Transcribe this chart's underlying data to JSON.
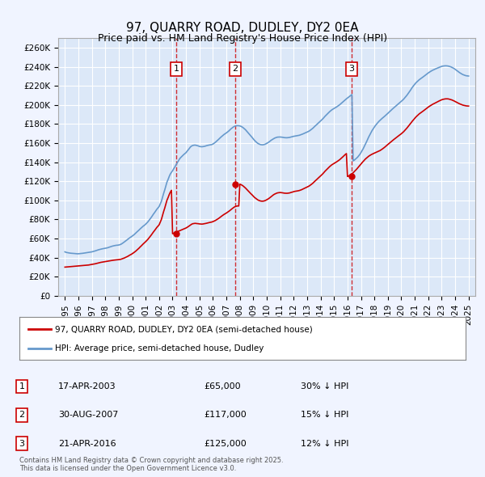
{
  "title": "97, QUARRY ROAD, DUDLEY, DY2 0EA",
  "subtitle": "Price paid vs. HM Land Registry's House Price Index (HPI)",
  "ylabel": "",
  "ylim": [
    0,
    270000
  ],
  "yticks": [
    0,
    20000,
    40000,
    60000,
    80000,
    100000,
    120000,
    140000,
    160000,
    180000,
    200000,
    220000,
    240000,
    260000
  ],
  "ytick_labels": [
    "£0",
    "£20K",
    "£40K",
    "£60K",
    "£80K",
    "£100K",
    "£120K",
    "£140K",
    "£160K",
    "£180K",
    "£200K",
    "£220K",
    "£240K",
    "£260K"
  ],
  "background_color": "#f0f4ff",
  "plot_bg": "#dce8f8",
  "grid_color": "#ffffff",
  "red_line_color": "#cc0000",
  "blue_line_color": "#6699cc",
  "sale_dates": [
    "17-APR-2003",
    "30-AUG-2007",
    "21-APR-2016"
  ],
  "sale_years": [
    2003.29,
    2007.66,
    2016.3
  ],
  "sale_prices": [
    65000,
    117000,
    125000
  ],
  "sale_labels": [
    "1",
    "2",
    "3"
  ],
  "sale_vs_hpi": [
    "30% ↓ HPI",
    "15% ↓ HPI",
    "12% ↓ HPI"
  ],
  "legend_red": "97, QUARRY ROAD, DUDLEY, DY2 0EA (semi-detached house)",
  "legend_blue": "HPI: Average price, semi-detached house, Dudley",
  "footer": "Contains HM Land Registry data © Crown copyright and database right 2025.\nThis data is licensed under the Open Government Licence v3.0.",
  "hpi_data": {
    "years": [
      1995.0,
      1995.08,
      1995.17,
      1995.25,
      1995.33,
      1995.42,
      1995.5,
      1995.58,
      1995.67,
      1995.75,
      1995.83,
      1995.92,
      1996.0,
      1996.08,
      1996.17,
      1996.25,
      1996.33,
      1996.42,
      1996.5,
      1996.58,
      1996.67,
      1996.75,
      1996.83,
      1996.92,
      1997.0,
      1997.08,
      1997.17,
      1997.25,
      1997.33,
      1997.42,
      1997.5,
      1997.58,
      1997.67,
      1997.75,
      1997.83,
      1997.92,
      1998.0,
      1998.08,
      1998.17,
      1998.25,
      1998.33,
      1998.42,
      1998.5,
      1998.58,
      1998.67,
      1998.75,
      1998.83,
      1998.92,
      1999.0,
      1999.08,
      1999.17,
      1999.25,
      1999.33,
      1999.42,
      1999.5,
      1999.58,
      1999.67,
      1999.75,
      1999.83,
      1999.92,
      2000.0,
      2000.08,
      2000.17,
      2000.25,
      2000.33,
      2000.42,
      2000.5,
      2000.58,
      2000.67,
      2000.75,
      2000.83,
      2000.92,
      2001.0,
      2001.08,
      2001.17,
      2001.25,
      2001.33,
      2001.42,
      2001.5,
      2001.58,
      2001.67,
      2001.75,
      2001.83,
      2001.92,
      2002.0,
      2002.08,
      2002.17,
      2002.25,
      2002.33,
      2002.42,
      2002.5,
      2002.58,
      2002.67,
      2002.75,
      2002.83,
      2002.92,
      2003.0,
      2003.08,
      2003.17,
      2003.25,
      2003.33,
      2003.42,
      2003.5,
      2003.58,
      2003.67,
      2003.75,
      2003.83,
      2003.92,
      2004.0,
      2004.08,
      2004.17,
      2004.25,
      2004.33,
      2004.42,
      2004.5,
      2004.58,
      2004.67,
      2004.75,
      2004.83,
      2004.92,
      2005.0,
      2005.08,
      2005.17,
      2005.25,
      2005.33,
      2005.42,
      2005.5,
      2005.58,
      2005.67,
      2005.75,
      2005.83,
      2005.92,
      2006.0,
      2006.08,
      2006.17,
      2006.25,
      2006.33,
      2006.42,
      2006.5,
      2006.58,
      2006.67,
      2006.75,
      2006.83,
      2006.92,
      2007.0,
      2007.08,
      2007.17,
      2007.25,
      2007.33,
      2007.42,
      2007.5,
      2007.58,
      2007.67,
      2007.75,
      2007.83,
      2007.92,
      2008.0,
      2008.08,
      2008.17,
      2008.25,
      2008.33,
      2008.42,
      2008.5,
      2008.58,
      2008.67,
      2008.75,
      2008.83,
      2008.92,
      2009.0,
      2009.08,
      2009.17,
      2009.25,
      2009.33,
      2009.42,
      2009.5,
      2009.58,
      2009.67,
      2009.75,
      2009.83,
      2009.92,
      2010.0,
      2010.08,
      2010.17,
      2010.25,
      2010.33,
      2010.42,
      2010.5,
      2010.58,
      2010.67,
      2010.75,
      2010.83,
      2010.92,
      2011.0,
      2011.08,
      2011.17,
      2011.25,
      2011.33,
      2011.42,
      2011.5,
      2011.58,
      2011.67,
      2011.75,
      2011.83,
      2011.92,
      2012.0,
      2012.08,
      2012.17,
      2012.25,
      2012.33,
      2012.42,
      2012.5,
      2012.58,
      2012.67,
      2012.75,
      2012.83,
      2012.92,
      2013.0,
      2013.08,
      2013.17,
      2013.25,
      2013.33,
      2013.42,
      2013.5,
      2013.58,
      2013.67,
      2013.75,
      2013.83,
      2013.92,
      2014.0,
      2014.08,
      2014.17,
      2014.25,
      2014.33,
      2014.42,
      2014.5,
      2014.58,
      2014.67,
      2014.75,
      2014.83,
      2014.92,
      2015.0,
      2015.08,
      2015.17,
      2015.25,
      2015.33,
      2015.42,
      2015.5,
      2015.58,
      2015.67,
      2015.75,
      2015.83,
      2015.92,
      2016.0,
      2016.08,
      2016.17,
      2016.25,
      2016.33,
      2016.42,
      2016.5,
      2016.58,
      2016.67,
      2016.75,
      2016.83,
      2016.92,
      2017.0,
      2017.08,
      2017.17,
      2017.25,
      2017.33,
      2017.42,
      2017.5,
      2017.58,
      2017.67,
      2017.75,
      2017.83,
      2017.92,
      2018.0,
      2018.08,
      2018.17,
      2018.25,
      2018.33,
      2018.42,
      2018.5,
      2018.58,
      2018.67,
      2018.75,
      2018.83,
      2018.92,
      2019.0,
      2019.08,
      2019.17,
      2019.25,
      2019.33,
      2019.42,
      2019.5,
      2019.58,
      2019.67,
      2019.75,
      2019.83,
      2019.92,
      2020.0,
      2020.08,
      2020.17,
      2020.25,
      2020.33,
      2020.42,
      2020.5,
      2020.58,
      2020.67,
      2020.75,
      2020.83,
      2020.92,
      2021.0,
      2021.08,
      2021.17,
      2021.25,
      2021.33,
      2021.42,
      2021.5,
      2021.58,
      2021.67,
      2021.75,
      2021.83,
      2021.92,
      2022.0,
      2022.08,
      2022.17,
      2022.25,
      2022.33,
      2022.42,
      2022.5,
      2022.58,
      2022.67,
      2022.75,
      2022.83,
      2022.92,
      2023.0,
      2023.08,
      2023.17,
      2023.25,
      2023.33,
      2023.42,
      2023.5,
      2023.58,
      2023.67,
      2023.75,
      2023.83,
      2023.92,
      2024.0,
      2024.08,
      2024.17,
      2024.25,
      2024.33,
      2024.42,
      2024.5,
      2024.58,
      2024.67,
      2024.75,
      2024.83,
      2024.92,
      2025.0
    ],
    "hpi_values": [
      46000,
      45500,
      45200,
      45000,
      44800,
      44600,
      44500,
      44400,
      44300,
      44200,
      44100,
      44000,
      44000,
      44100,
      44200,
      44300,
      44500,
      44700,
      44900,
      45100,
      45200,
      45400,
      45600,
      45800,
      46000,
      46300,
      46600,
      47000,
      47400,
      47800,
      48200,
      48500,
      48800,
      49100,
      49300,
      49500,
      49700,
      50000,
      50300,
      50700,
      51100,
      51500,
      51900,
      52200,
      52500,
      52700,
      52900,
      53000,
      53200,
      53500,
      54000,
      54700,
      55500,
      56400,
      57300,
      58200,
      59100,
      60000,
      60900,
      61700,
      62500,
      63400,
      64400,
      65500,
      66600,
      67700,
      68800,
      69900,
      71000,
      72100,
      73100,
      74000,
      75000,
      76200,
      77500,
      79000,
      80600,
      82200,
      83900,
      85600,
      87300,
      89000,
      90600,
      92100,
      93500,
      96000,
      99000,
      103000,
      107000,
      111000,
      115000,
      119000,
      122000,
      125000,
      127500,
      129500,
      131000,
      133000,
      135000,
      137000,
      139000,
      141000,
      143000,
      144500,
      145800,
      147000,
      148000,
      149000,
      150000,
      151500,
      153000,
      154500,
      156000,
      157000,
      157500,
      157800,
      157900,
      157700,
      157400,
      157000,
      156500,
      156300,
      156200,
      156300,
      156500,
      156800,
      157200,
      157500,
      157800,
      158000,
      158200,
      158500,
      159000,
      159800,
      160700,
      161700,
      162800,
      163900,
      165000,
      166100,
      167200,
      168200,
      169100,
      169900,
      170700,
      171600,
      172600,
      173700,
      174800,
      175800,
      176700,
      177400,
      177900,
      178200,
      178300,
      178200,
      178000,
      177600,
      176900,
      176100,
      175100,
      174000,
      172700,
      171400,
      170000,
      168600,
      167200,
      165800,
      164400,
      163000,
      161800,
      160700,
      159800,
      159100,
      158600,
      158300,
      158200,
      158300,
      158600,
      159100,
      159700,
      160400,
      161200,
      162100,
      163000,
      163800,
      164600,
      165200,
      165700,
      166100,
      166300,
      166400,
      166400,
      166300,
      166100,
      165900,
      165700,
      165600,
      165600,
      165700,
      165900,
      166200,
      166500,
      166800,
      167100,
      167300,
      167500,
      167700,
      167900,
      168200,
      168600,
      169000,
      169500,
      170000,
      170500,
      171000,
      171500,
      172100,
      172800,
      173600,
      174500,
      175500,
      176600,
      177700,
      178800,
      179900,
      181000,
      182100,
      183200,
      184300,
      185500,
      186800,
      188100,
      189400,
      190600,
      191800,
      192900,
      193900,
      194800,
      195600,
      196300,
      197000,
      197700,
      198500,
      199300,
      200200,
      201200,
      202200,
      203300,
      204400,
      205400,
      206400,
      207300,
      208200,
      209100,
      210000,
      210900,
      141400,
      142000,
      143000,
      144000,
      145200,
      146600,
      148200,
      150000,
      152000,
      154200,
      156500,
      159000,
      161500,
      164000,
      166500,
      168900,
      171100,
      173200,
      175100,
      176900,
      178500,
      180000,
      181400,
      182700,
      183900,
      185000,
      186000,
      187000,
      188000,
      189000,
      190100,
      191200,
      192300,
      193400,
      194500,
      195600,
      196700,
      197700,
      198700,
      199700,
      200700,
      201700,
      202700,
      203700,
      204800,
      206000,
      207300,
      208700,
      210200,
      211800,
      213500,
      215200,
      217000,
      218700,
      220300,
      221800,
      223100,
      224300,
      225400,
      226400,
      227300,
      228200,
      229000,
      229900,
      230800,
      231700,
      232600,
      233500,
      234300,
      235100,
      235800,
      236400,
      237000,
      237500,
      238000,
      238500,
      239000,
      239500,
      240000,
      240400,
      240700,
      240900,
      241000,
      241000,
      240900,
      240700,
      240400,
      240000,
      239500,
      238900,
      238200,
      237400,
      236500,
      235600,
      234700,
      233900,
      233100,
      232400,
      231800,
      231300,
      230900,
      230600,
      230400,
      230300
    ],
    "property_values": [
      30000,
      30100,
      30200,
      30300,
      30400,
      30500,
      30600,
      30700,
      30800,
      30900,
      31000,
      31100,
      31200,
      31300,
      31400,
      31500,
      31600,
      31700,
      31800,
      31900,
      32000,
      32200,
      32400,
      32600,
      32800,
      33000,
      33200,
      33500,
      33800,
      34100,
      34400,
      34700,
      35000,
      35200,
      35400,
      35600,
      35800,
      36000,
      36200,
      36400,
      36600,
      36800,
      37000,
      37200,
      37400,
      37500,
      37600,
      37700,
      37800,
      38000,
      38300,
      38700,
      39100,
      39600,
      40100,
      40700,
      41300,
      42000,
      42700,
      43300,
      44000,
      44800,
      45700,
      46600,
      47600,
      48700,
      49800,
      51000,
      52200,
      53400,
      54500,
      55600,
      56700,
      57900,
      59200,
      60600,
      62100,
      63700,
      65300,
      66900,
      68500,
      70100,
      71600,
      73000,
      74300,
      77000,
      80000,
      84000,
      88000,
      92000,
      96000,
      100000,
      103000,
      106000,
      108500,
      110500,
      65000,
      65500,
      66000,
      66500,
      67000,
      67500,
      68000,
      68500,
      69000,
      69500,
      70000,
      70500,
      71000,
      71700,
      72500,
      73300,
      74100,
      75000,
      75500,
      75700,
      75900,
      75800,
      75700,
      75500,
      75300,
      75200,
      75100,
      75200,
      75400,
      75600,
      75900,
      76200,
      76500,
      76800,
      77000,
      77300,
      77700,
      78200,
      78800,
      79500,
      80200,
      81000,
      81900,
      82800,
      83700,
      84500,
      85300,
      86000,
      86700,
      87500,
      88300,
      89200,
      90200,
      91200,
      92100,
      92900,
      93500,
      93900,
      94100,
      94100,
      117000,
      116500,
      115800,
      115000,
      114000,
      112900,
      111700,
      110500,
      109200,
      108000,
      106800,
      105600,
      104400,
      103200,
      102200,
      101300,
      100500,
      99900,
      99500,
      99200,
      99100,
      99200,
      99500,
      100000,
      100600,
      101300,
      102100,
      103000,
      104000,
      104900,
      105800,
      106500,
      107100,
      107600,
      107900,
      108100,
      108200,
      108100,
      107900,
      107700,
      107500,
      107400,
      107400,
      107500,
      107700,
      108000,
      108400,
      108700,
      109100,
      109400,
      109600,
      109800,
      110000,
      110300,
      110700,
      111100,
      111700,
      112200,
      112800,
      113300,
      113900,
      114500,
      115200,
      116000,
      116900,
      117900,
      119000,
      120100,
      121200,
      122300,
      123400,
      124500,
      125600,
      126700,
      127900,
      129200,
      130500,
      131800,
      133000,
      134200,
      135300,
      136300,
      137200,
      138000,
      138700,
      139400,
      140100,
      140900,
      141700,
      142600,
      143600,
      144700,
      145800,
      146900,
      148000,
      149000,
      125000,
      125500,
      126200,
      127000,
      127900,
      128900,
      130000,
      131200,
      132500,
      133800,
      135200,
      136600,
      138000,
      139400,
      140800,
      142100,
      143300,
      144400,
      145400,
      146300,
      147100,
      147800,
      148400,
      149000,
      149500,
      150000,
      150500,
      151000,
      151600,
      152200,
      152900,
      153700,
      154600,
      155500,
      156500,
      157500,
      158500,
      159500,
      160500,
      161500,
      162500,
      163500,
      164400,
      165300,
      166200,
      167100,
      168000,
      168900,
      169800,
      170800,
      171900,
      173100,
      174400,
      175800,
      177200,
      178700,
      180200,
      181700,
      183200,
      184600,
      186000,
      187300,
      188500,
      189600,
      190600,
      191500,
      192400,
      193200,
      194100,
      195000,
      195900,
      196800,
      197700,
      198500,
      199300,
      200000,
      200700,
      201300,
      201900,
      202500,
      203100,
      203700,
      204300,
      204900,
      205400,
      205800,
      206100,
      206300,
      206400,
      206400,
      206300,
      206000,
      205700,
      205300,
      204800,
      204200,
      203600,
      203000,
      202400,
      201800,
      201200,
      200700,
      200200,
      199800,
      199500,
      199200,
      199000,
      198900,
      198800
    ]
  }
}
